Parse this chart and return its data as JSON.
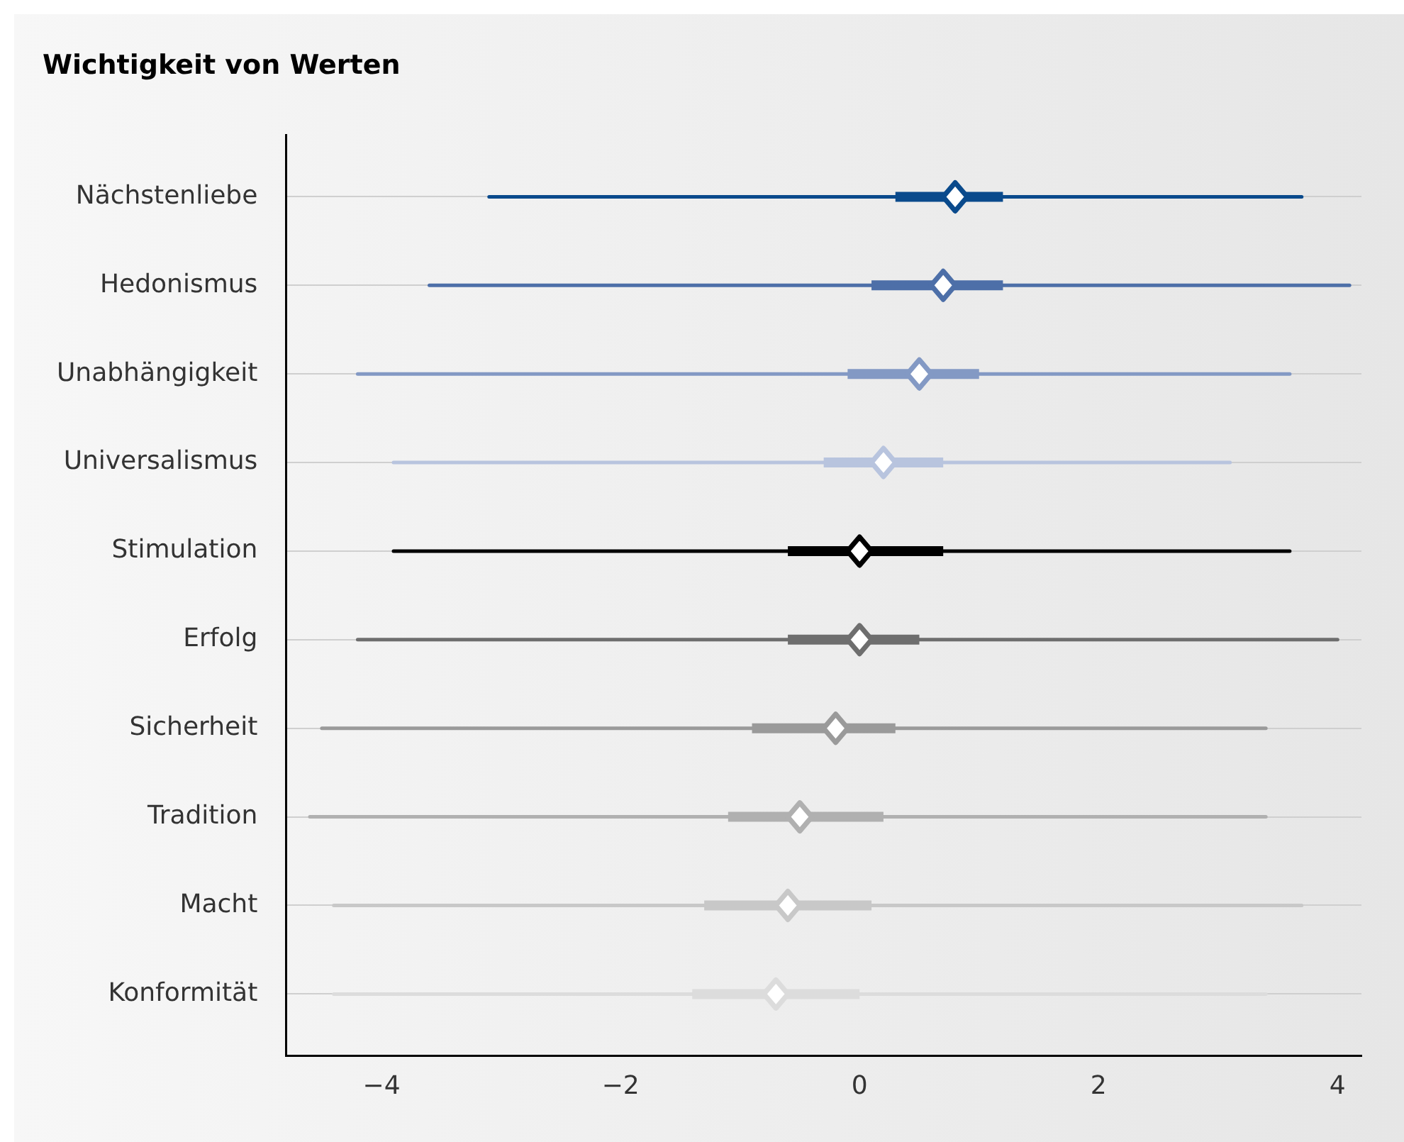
{
  "chart_data": {
    "type": "box",
    "title": "Wichtigkeit von Werten",
    "orientation": "horizontal",
    "categories": [
      "Nächstenliebe",
      "Hedonismus",
      "Unabhängigkeit",
      "Universalismus",
      "Stimulation",
      "Erfolg",
      "Sicherheit",
      "Tradition",
      "Macht",
      "Konformität"
    ],
    "boxes": [
      {
        "low": -3.1,
        "q1": 0.3,
        "median": 0.8,
        "q3": 1.2,
        "high": 3.7
      },
      {
        "low": -3.6,
        "q1": 0.1,
        "median": 0.7,
        "q3": 1.2,
        "high": 4.1
      },
      {
        "low": -4.2,
        "q1": -0.1,
        "median": 0.5,
        "q3": 1.0,
        "high": 3.6
      },
      {
        "low": -3.9,
        "q1": -0.3,
        "median": 0.2,
        "q3": 0.7,
        "high": 3.1
      },
      {
        "low": -3.9,
        "q1": -0.6,
        "median": 0.0,
        "q3": 0.7,
        "high": 3.6
      },
      {
        "low": -4.2,
        "q1": -0.6,
        "median": 0.0,
        "q3": 0.5,
        "high": 4.0
      },
      {
        "low": -4.5,
        "q1": -0.9,
        "median": -0.2,
        "q3": 0.3,
        "high": 3.4
      },
      {
        "low": -4.6,
        "q1": -1.1,
        "median": -0.5,
        "q3": 0.2,
        "high": 3.4
      },
      {
        "low": -4.4,
        "q1": -1.3,
        "median": -0.6,
        "q3": 0.1,
        "high": 3.7
      },
      {
        "low": -4.4,
        "q1": -1.4,
        "median": -0.7,
        "q3": 0.0,
        "high": 3.4
      }
    ],
    "colors": [
      "#0a4a8c",
      "#4d6fa8",
      "#8399c4",
      "#b8c4de",
      "#000000",
      "#6e6e6e",
      "#9a9a9a",
      "#b0b0b0",
      "#c8c8c8",
      "#dcdcdc"
    ],
    "xlim": [
      -4.8,
      4.2
    ],
    "xticks": [
      {
        "value": -4,
        "label": "−4"
      },
      {
        "value": -2,
        "label": "−2"
      },
      0,
      2,
      4
    ],
    "grid": "y"
  }
}
